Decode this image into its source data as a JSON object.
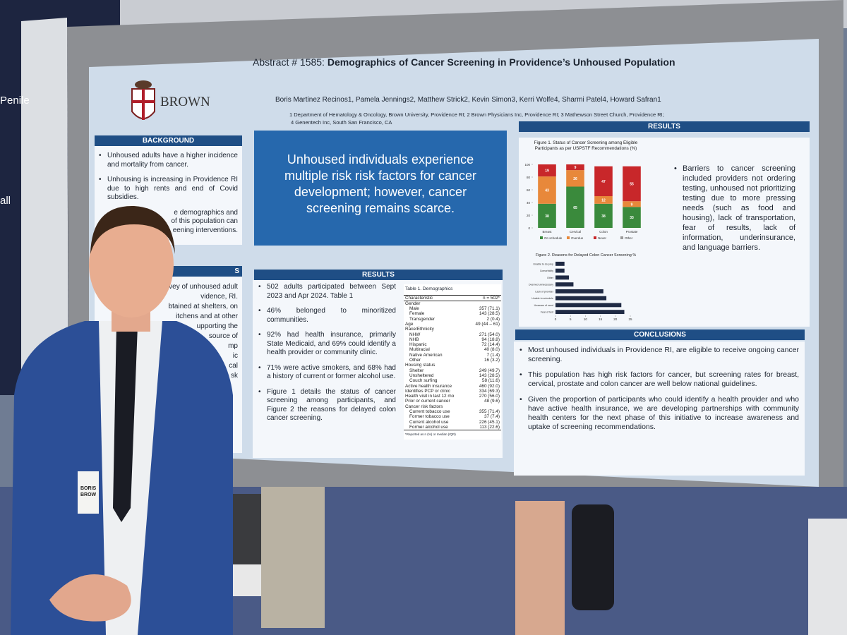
{
  "sign": {
    "lines": [
      "Penile",
      "all"
    ]
  },
  "poster": {
    "abstract_label": "Abstract # 1585:",
    "title": "Demographics of Cancer Screening in Providence’s Unhoused Population",
    "logo": "BROWN",
    "authors": "Boris Martinez Recinos1, Pamela Jennings2, Matthew Strick2, Kevin Simon3, Kerri Wolfe4, Sharmi Patel4, Howard Safran1",
    "affiliations": [
      "1 Department of Hematology & Oncology, Brown University, Providence RI; 2 Brown Physicians Inc, Providence RI; 3 Mathewson Street Church, Providence RI;",
      "4 Genentech Inc, South San Francisco, CA"
    ],
    "background": {
      "heading": "BACKGROUND",
      "bullets": [
        "Unhoused adults have a higher incidence and mortality from cancer.",
        "Unhousing is increasing in Providence RI due to high rents and end of Covid subsidies."
      ],
      "fragments": [
        "e demographics and",
        "of this population can",
        "eening interventions."
      ]
    },
    "methods": {
      "heading": "S",
      "fragments": [
        "vey of unhoused adult",
        "vidence, RI.",
        "btained at shelters, on",
        "itchens and at other",
        "upporting the",
        "source of",
        "mp",
        "ic",
        "cal",
        "sk"
      ]
    },
    "banner": "Unhoused individuals experience multiple risk risk factors for cancer development; however, cancer screening remains scarce.",
    "results_left": {
      "heading": "RESULTS",
      "bullets": [
        "502 adults participated between Sept 2023 and Apr 2024. Table 1",
        "46% belonged to minoritized communities.",
        "92% had health insurance, primarily State Medicaid, and 69% could identify a health provider or community clinic.",
        "71% were active smokers, and 68% had a history of current or former alcohol use.",
        "Figure 1 details the status of cancer screening among participants, and Figure 2 the reasons for delayed colon cancer screening."
      ]
    },
    "table": {
      "title": "Table 1. Demographics",
      "header": [
        "Characteristic",
        "n = 502*"
      ],
      "groups": [
        {
          "label": "Gender",
          "items": [
            [
              "Male",
              "357 (71.1)"
            ],
            [
              "Female",
              "143 (28.5)"
            ],
            [
              "Transgender",
              "2 (0.4)"
            ]
          ]
        },
        {
          "label": "Age",
          "value": "49 (44 – 61)"
        },
        {
          "label": "Race/Ethnicity",
          "items": [
            [
              "NHW",
              "271 (54.0)"
            ],
            [
              "NHB",
              "94 (18.8)"
            ],
            [
              "Hispanic",
              "72 (14.4)"
            ],
            [
              "Multiracial",
              "40 (8.0)"
            ],
            [
              "Native American",
              "7 (1.4)"
            ],
            [
              "Other",
              "16 (3.2)"
            ]
          ]
        },
        {
          "label": "Housing status",
          "items": [
            [
              "Shelter",
              "249 (49.7)"
            ],
            [
              "Unsheltered",
              "143 (28.5)"
            ],
            [
              "Couch surfing",
              "58 (11.6)"
            ]
          ]
        },
        {
          "label": "Active health insurance",
          "value": "460 (92.0)"
        },
        {
          "label": "Identifies PCP or clinic",
          "value": "334 (69.3)"
        },
        {
          "label": "Health visit in last 12 mo",
          "value": "270 (56.0)"
        },
        {
          "label": "Prior or current cancer",
          "value": "48 (9.6)"
        },
        {
          "label": "Cancer risk factors",
          "items": [
            [
              "Current tobacco use",
              "355 (71.4)"
            ],
            [
              "Former tobacco use",
              "37 (7.4)"
            ],
            [
              "Current alcohol use",
              "226 (45.1)"
            ],
            [
              "Former alcohol use",
              "113 (22.6)"
            ]
          ]
        }
      ],
      "footnote": "*Reported as n (%) or median (IQR)"
    },
    "results_right": {
      "heading": "RESULTS",
      "text": "Barriers to cancer screening included providers not ordering testing, unhoused not prioritizing testing due to more pressing needs (such as food and housing), lack of transportation, fear of results, lack of information, underinsurance, and language barriers."
    },
    "conclusions": {
      "heading": "CONCLUSIONS",
      "bullets": [
        "Most unhoused individuals in Providence RI, are eligible to receive ongoing cancer screening.",
        "This population has high risk factors for cancer, but screening rates for breast, cervical, prostate and colon cancer are well below national guidelines.",
        "Given the proportion of participants who could identify a health provider and who have active health insurance, we are developing partnerships with community health centers for the next phase of this initiative to increase awareness and uptake of screening recommendations."
      ]
    }
  },
  "badge": [
    "BORIS",
    "BROW"
  ],
  "chart_data": [
    {
      "type": "stacked_bar",
      "title": "Figure 1. Status of Cancer Screening among Eligible Participants as per USPSTF Recommendations (%)",
      "categories": [
        "Breast",
        "Cervical",
        "Colon",
        "Prostate"
      ],
      "series": [
        {
          "name": "On schedule",
          "color": "#3a8a3c",
          "values": [
            38,
            65,
            38,
            33
          ]
        },
        {
          "name": "Overdue",
          "color": "#e8883a",
          "values": [
            43,
            26,
            12,
            9
          ]
        },
        {
          "name": "Never",
          "color": "#c8272a",
          "values": [
            19,
            9,
            47,
            55
          ]
        },
        {
          "name": "Other",
          "color": "#9a9a9a",
          "values": [
            null,
            null,
            null,
            null
          ]
        }
      ],
      "ylim": [
        0,
        100
      ],
      "yticks": [
        0,
        20,
        40,
        60,
        80,
        100
      ]
    },
    {
      "type": "hbar",
      "title": "Figure 2. Reasons for Delayed Colon Cancer Screening %",
      "categories": [
        "Unable to do prep",
        "Comorbidity",
        "Other",
        "Deemed unnecessary",
        "Lack of provider",
        "Unable to schedule",
        "Unaware of need",
        "Fear of test"
      ],
      "values": [
        3,
        3,
        4.5,
        6,
        16,
        17,
        22,
        23
      ],
      "color": "#1f2a44",
      "xlim": [
        0,
        25
      ],
      "xticks": [
        0,
        5,
        10,
        15,
        20,
        25
      ]
    }
  ]
}
